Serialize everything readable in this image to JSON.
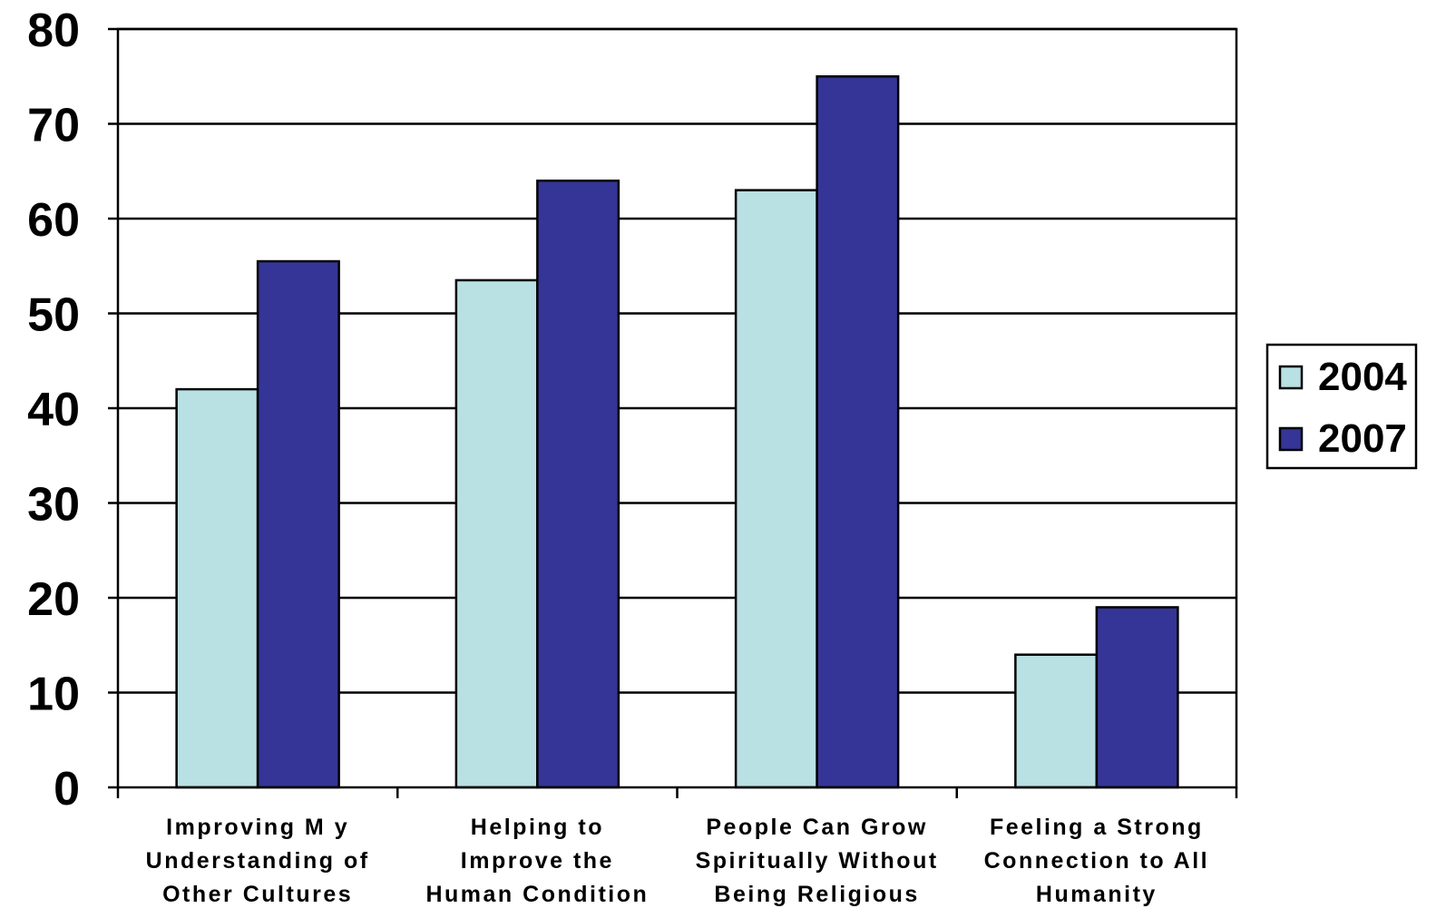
{
  "chart_data": {
    "type": "bar",
    "title": "",
    "xlabel": "",
    "ylabel": "",
    "ylim": [
      0,
      80
    ],
    "yticks": [
      "0",
      "10",
      "20",
      "30",
      "40",
      "50",
      "60",
      "70",
      "80"
    ],
    "grid": true,
    "legend_position": "right",
    "categories": [
      [
        "Improving M y",
        "Understanding of",
        "Other Cultures"
      ],
      [
        "Helping to",
        "Improve the",
        "Human Condition"
      ],
      [
        "People Can Grow",
        "Spiritually Without",
        "Being Religious"
      ],
      [
        "Feeling a Strong",
        "Connection to All",
        "Humanity"
      ]
    ],
    "series": [
      {
        "name": "2004",
        "color": "#b9e0e3",
        "values": [
          42,
          53.5,
          63,
          14
        ]
      },
      {
        "name": "2007",
        "color": "#353597",
        "values": [
          55.5,
          64,
          75,
          19
        ]
      }
    ]
  }
}
